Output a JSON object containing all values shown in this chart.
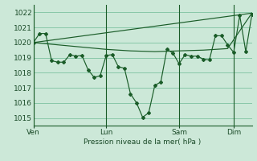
{
  "bg_color": "#cce8d8",
  "grid_color": "#88c8a8",
  "line_color": "#1a5c28",
  "ylabel": "Pression niveau de la mer( hPa )",
  "ylim": [
    1014.5,
    1022.5
  ],
  "yticks": [
    1015,
    1016,
    1017,
    1018,
    1019,
    1020,
    1021,
    1022
  ],
  "day_labels": [
    "Ven",
    "Lun",
    "Sam",
    "Dim"
  ],
  "day_positions": [
    0,
    12,
    24,
    33
  ],
  "xlim": [
    0,
    36
  ],
  "series1_x": [
    0,
    1,
    2,
    3,
    4,
    5,
    6,
    7,
    8,
    9,
    10,
    11,
    12,
    13,
    14,
    15,
    16,
    17,
    18,
    19,
    20,
    21,
    22,
    23,
    24,
    25,
    26,
    27,
    28,
    29,
    30,
    31,
    32,
    33,
    34,
    35,
    36
  ],
  "series1_y": [
    1020.0,
    1020.6,
    1020.6,
    1018.8,
    1018.7,
    1018.7,
    1019.2,
    1019.1,
    1019.15,
    1018.2,
    1017.7,
    1017.8,
    1019.15,
    1019.2,
    1018.4,
    1018.3,
    1016.6,
    1016.0,
    1015.05,
    1015.35,
    1017.15,
    1017.4,
    1019.55,
    1019.3,
    1018.6,
    1019.2,
    1019.1,
    1019.1,
    1018.9,
    1018.85,
    1020.45,
    1020.45,
    1019.85,
    1019.35,
    1021.8,
    1019.4,
    1021.85
  ],
  "series2_x": [
    0,
    4,
    8,
    12,
    16,
    20,
    24,
    28,
    32,
    36
  ],
  "series2_y": [
    1020.0,
    1019.85,
    1019.7,
    1019.55,
    1019.45,
    1019.4,
    1019.45,
    1019.5,
    1019.6,
    1021.95
  ],
  "series3_x": [
    0,
    36
  ],
  "series3_y": [
    1020.0,
    1021.95
  ]
}
